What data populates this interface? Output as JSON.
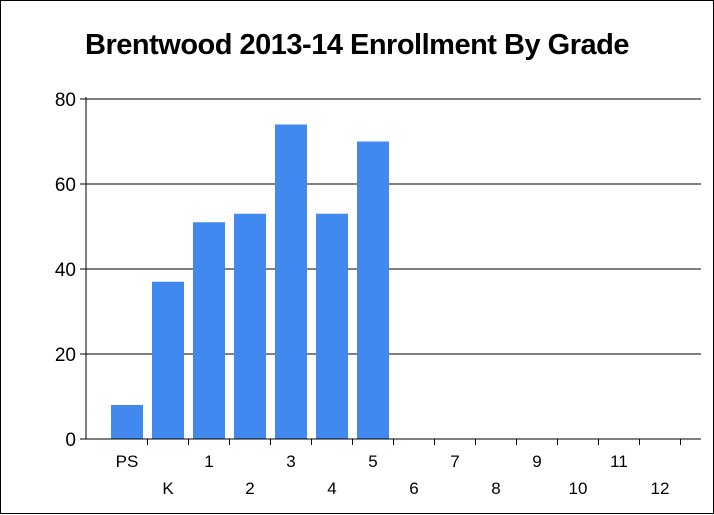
{
  "chart_data": {
    "type": "bar",
    "title": "Brentwood 2013-14 Enrollment By Grade",
    "xlabel": "",
    "ylabel": "",
    "categories": [
      "PS",
      "K",
      "1",
      "2",
      "3",
      "4",
      "5",
      "6",
      "7",
      "8",
      "9",
      "10",
      "11",
      "12"
    ],
    "values": [
      8,
      37,
      51,
      53,
      74,
      53,
      70,
      0,
      0,
      0,
      0,
      0,
      0,
      0
    ],
    "ylim": [
      0,
      80
    ],
    "yticks": [
      0,
      20,
      40,
      60,
      80
    ],
    "grid": true,
    "legend": "none",
    "bar_color": "#4189EE"
  }
}
